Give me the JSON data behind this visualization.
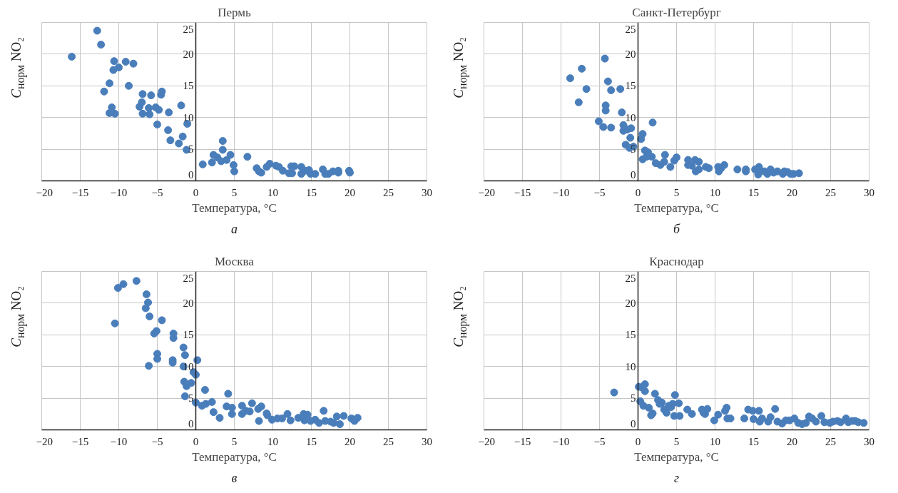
{
  "chart_data": [
    {
      "type": "scatter",
      "title": "Пермь",
      "xlabel": "Температура, °C",
      "ylabel": "C$_{норм}$ NO₂",
      "annotations": [
        "а"
      ],
      "color": "#4a7ebb",
      "marker": "circle",
      "grid": true,
      "xlim": [
        -20,
        30
      ],
      "ylim": [
        0,
        25
      ],
      "xticks": [
        {
          "value": -20,
          "label": "−20"
        },
        {
          "value": -15,
          "label": "−15"
        },
        {
          "value": -10,
          "label": "−10"
        },
        {
          "value": -5,
          "label": "−5"
        },
        0,
        5,
        10,
        15,
        20,
        25,
        30
      ],
      "yticks": [
        0,
        5,
        10,
        15,
        20,
        25
      ],
      "x": [
        -16.1,
        -12.8,
        -12.3,
        -10.6,
        -10.7,
        -10.0,
        -9.1,
        -8.1,
        -11.2,
        -8.7,
        -11.9,
        -10.9,
        -11.2,
        -10.5,
        -6.9,
        -5.8,
        -4.4,
        -4.5,
        -7.0,
        -7.3,
        -6.1,
        -5.2,
        -4.8,
        -6.9,
        -6.0,
        -3.5,
        -1.9,
        -5.0,
        -3.6,
        -3.3,
        -2.2,
        -1.7,
        -1.1,
        -1.2,
        0.9,
        2.1,
        2.3,
        2.8,
        3.5,
        3.5,
        3.3,
        4.0,
        4.5,
        4.9,
        5.0,
        6.7,
        7.9,
        8.2,
        8.5,
        9.2,
        9.6,
        10.4,
        10.8,
        11.3,
        12.1,
        12.5,
        12.4,
        12.8,
        13.7,
        13.7,
        14.2,
        14.7,
        14.9,
        15.5,
        16.5,
        16.8,
        17.2,
        17.8,
        18.5,
        18.5,
        19.9,
        20.0
      ],
      "values": [
        19.6,
        23.7,
        21.5,
        18.9,
        17.5,
        17.9,
        18.8,
        18.5,
        15.4,
        15.0,
        14.1,
        11.6,
        10.7,
        10.6,
        13.7,
        13.5,
        14.1,
        13.6,
        12.4,
        11.7,
        11.5,
        11.6,
        11.2,
        10.6,
        10.5,
        10.8,
        11.9,
        8.9,
        8.0,
        6.4,
        5.9,
        7.0,
        9.0,
        4.9,
        2.6,
        2.9,
        4.1,
        3.7,
        6.3,
        4.9,
        3.1,
        3.3,
        4.1,
        2.5,
        1.5,
        3.8,
        2.0,
        1.5,
        1.3,
        2.2,
        2.7,
        2.4,
        2.2,
        1.6,
        1.2,
        1.2,
        2.3,
        2.3,
        2.2,
        1.1,
        1.6,
        1.7,
        1.1,
        1.1,
        1.8,
        1.1,
        1.1,
        1.5,
        1.6,
        1.3,
        1.6,
        1.3
      ]
    },
    {
      "type": "scatter",
      "title": "Санкт-Петербург",
      "xlabel": "Температура, °C",
      "ylabel": "C$_{норм}$ NO₂",
      "annotations": [
        "б"
      ],
      "color": "#4a7ebb",
      "marker": "circle",
      "grid": true,
      "xlim": [
        -20,
        30
      ],
      "ylim": [
        0,
        25
      ],
      "xticks": [
        {
          "value": -20,
          "label": "−20"
        },
        {
          "value": -15,
          "label": "−15"
        },
        {
          "value": -10,
          "label": "−10"
        },
        {
          "value": -5,
          "label": "−5"
        },
        0,
        5,
        10,
        15,
        20,
        25,
        30
      ],
      "yticks": [
        0,
        5,
        10,
        15,
        20,
        25
      ],
      "x": [
        -8.8,
        -7.3,
        -6.7,
        -7.7,
        -4.3,
        -3.9,
        -3.5,
        -2.3,
        -4.2,
        -4.2,
        -2.1,
        -5.1,
        -4.5,
        -3.5,
        -1.9,
        -1.9,
        -1.4,
        -0.9,
        -1.0,
        -1.6,
        -1.1,
        -0.6,
        0.4,
        0.6,
        1.9,
        0.9,
        1.3,
        0.6,
        1.1,
        1.8,
        2.3,
        2.9,
        3.5,
        3.4,
        4.2,
        4.7,
        5.0,
        6.5,
        6.5,
        7.0,
        7.4,
        7.9,
        7.5,
        7.9,
        8.8,
        9.2,
        10.4,
        10.5,
        10.8,
        11.2,
        12.9,
        14.0,
        14.0,
        15.2,
        15.7,
        15.6,
        15.9,
        16.4,
        16.8,
        17.2,
        17.6,
        18.1,
        18.8,
        19.0,
        19.4,
        19.8,
        20.2,
        20.9
      ],
      "values": [
        16.2,
        17.7,
        14.5,
        12.4,
        19.3,
        15.7,
        14.3,
        14.5,
        11.9,
        11.1,
        10.8,
        9.4,
        8.5,
        8.4,
        8.8,
        7.9,
        8.1,
        8.3,
        6.8,
        5.7,
        5.2,
        5.4,
        6.6,
        7.4,
        9.2,
        4.8,
        4.5,
        3.4,
        3.8,
        3.8,
        2.8,
        2.5,
        4.1,
        3.0,
        2.2,
        3.2,
        3.7,
        3.3,
        2.5,
        2.4,
        3.3,
        3.0,
        1.5,
        1.8,
        2.2,
        2.0,
        2.2,
        1.5,
        2.0,
        2.5,
        1.8,
        1.8,
        1.5,
        1.8,
        2.2,
        1.0,
        1.6,
        1.5,
        1.1,
        1.8,
        1.3,
        1.5,
        1.1,
        1.5,
        1.4,
        1.1,
        1.1,
        1.2
      ]
    },
    {
      "type": "scatter",
      "title": "Москва",
      "xlabel": "Температура, °C",
      "ylabel": "C$_{норм}$ NO₂",
      "annotations": [
        "в"
      ],
      "color": "#4a7ebb",
      "marker": "circle",
      "grid": true,
      "xlim": [
        -20,
        30
      ],
      "ylim": [
        0,
        25
      ],
      "xticks": [
        {
          "value": -20,
          "label": "−20"
        },
        {
          "value": -15,
          "label": "−15"
        },
        {
          "value": -10,
          "label": "−10"
        },
        {
          "value": -5,
          "label": "−5"
        },
        0,
        5,
        10,
        15,
        20,
        25,
        30
      ],
      "yticks": [
        0,
        5,
        10,
        15,
        20,
        25
      ],
      "x": [
        -10.5,
        -10.1,
        -9.4,
        -7.7,
        -6.4,
        -6.2,
        -6.5,
        -6.0,
        -4.4,
        -5.1,
        -5.4,
        -5.0,
        -5.0,
        -6.1,
        -2.9,
        -2.9,
        -1.6,
        -1.4,
        -3.0,
        -3.0,
        -1.6,
        0.2,
        -0.3,
        0.0,
        -1.5,
        -1.2,
        -0.6,
        -1.4,
        0.0,
        1.2,
        0.8,
        1.3,
        2.1,
        2.3,
        3.1,
        4.2,
        4.0,
        4.7,
        4.7,
        6.0,
        6.0,
        6.5,
        7.3,
        7.0,
        8.1,
        8.5,
        8.2,
        9.2,
        9.3,
        9.9,
        10.6,
        11.2,
        11.9,
        12.3,
        13.3,
        14.0,
        14.5,
        14.1,
        14.9,
        15.5,
        16.0,
        16.6,
        16.8,
        17.5,
        17.9,
        18.3,
        18.7,
        19.2,
        20.2,
        20.6,
        21.0
      ],
      "values": [
        16.8,
        22.4,
        23.0,
        23.5,
        21.4,
        20.1,
        19.2,
        17.9,
        17.3,
        15.6,
        15.2,
        12.0,
        11.2,
        10.1,
        15.2,
        14.5,
        13.0,
        11.8,
        11.0,
        10.6,
        10.0,
        11.0,
        9.1,
        8.7,
        7.6,
        6.9,
        7.4,
        5.3,
        4.3,
        6.3,
        3.8,
        4.1,
        4.4,
        2.8,
        1.9,
        5.7,
        3.7,
        3.5,
        2.5,
        3.8,
        2.5,
        3.0,
        4.2,
        2.9,
        3.3,
        3.7,
        1.4,
        2.6,
        2.3,
        1.6,
        1.8,
        1.8,
        2.5,
        1.5,
        1.9,
        2.5,
        2.4,
        1.5,
        1.4,
        1.6,
        1.1,
        3.0,
        1.4,
        1.3,
        1.1,
        2.1,
        0.9,
        2.2,
        1.8,
        1.4,
        1.9
      ]
    },
    {
      "type": "scatter",
      "title": "Краснодар",
      "xlabel": "Температура, °C",
      "ylabel": "C$_{норм}$ NO₂",
      "annotations": [
        "г"
      ],
      "color": "#4a7ebb",
      "marker": "circle",
      "grid": true,
      "xlim": [
        -20,
        30
      ],
      "ylim": [
        0,
        25
      ],
      "xticks": [
        {
          "value": -20,
          "label": "−20"
        },
        {
          "value": -15,
          "label": "−15"
        },
        {
          "value": -10,
          "label": "−10"
        },
        {
          "value": -5,
          "label": "−5"
        },
        0,
        5,
        10,
        15,
        20,
        25,
        30
      ],
      "yticks": [
        0,
        5,
        10,
        15,
        20,
        25
      ],
      "x": [
        -3.1,
        0.1,
        0.5,
        0.9,
        0.9,
        0.3,
        0.7,
        1.4,
        1.7,
        1.9,
        2.2,
        2.6,
        2.8,
        3.1,
        3.4,
        3.7,
        4.0,
        4.3,
        4.5,
        4.8,
        5.3,
        4.7,
        5.4,
        6.4,
        7.0,
        8.3,
        8.5,
        8.7,
        9.0,
        9.9,
        10.4,
        11.3,
        11.5,
        11.6,
        12.0,
        13.8,
        14.3,
        14.9,
        15.0,
        15.7,
        15.8,
        16.1,
        16.9,
        17.2,
        17.8,
        18.1,
        18.7,
        19.2,
        19.7,
        20.3,
        20.8,
        21.3,
        21.8,
        22.2,
        22.6,
        23.1,
        23.8,
        24.2,
        24.9,
        25.3,
        25.9,
        26.3,
        27.0,
        27.3,
        27.8,
        28.2,
        28.6,
        29.3
      ],
      "values": [
        5.9,
        6.8,
        6.7,
        7.2,
        6.1,
        4.5,
        3.8,
        3.5,
        2.3,
        2.6,
        5.7,
        4.7,
        4.1,
        4.3,
        3.2,
        2.7,
        3.8,
        3.6,
        4.1,
        5.5,
        4.2,
        2.2,
        2.2,
        3.2,
        2.5,
        3.2,
        2.7,
        2.5,
        3.3,
        1.5,
        2.4,
        3.0,
        3.5,
        1.8,
        1.8,
        1.8,
        3.2,
        3.0,
        1.7,
        3.0,
        1.3,
        1.8,
        1.3,
        2.0,
        3.3,
        1.3,
        1.0,
        1.5,
        1.5,
        1.8,
        1.1,
        0.9,
        1.1,
        2.1,
        1.8,
        1.3,
        2.2,
        1.2,
        1.1,
        1.3,
        1.4,
        1.2,
        1.8,
        1.2,
        1.4,
        1.4,
        1.2,
        1.1
      ]
    }
  ]
}
